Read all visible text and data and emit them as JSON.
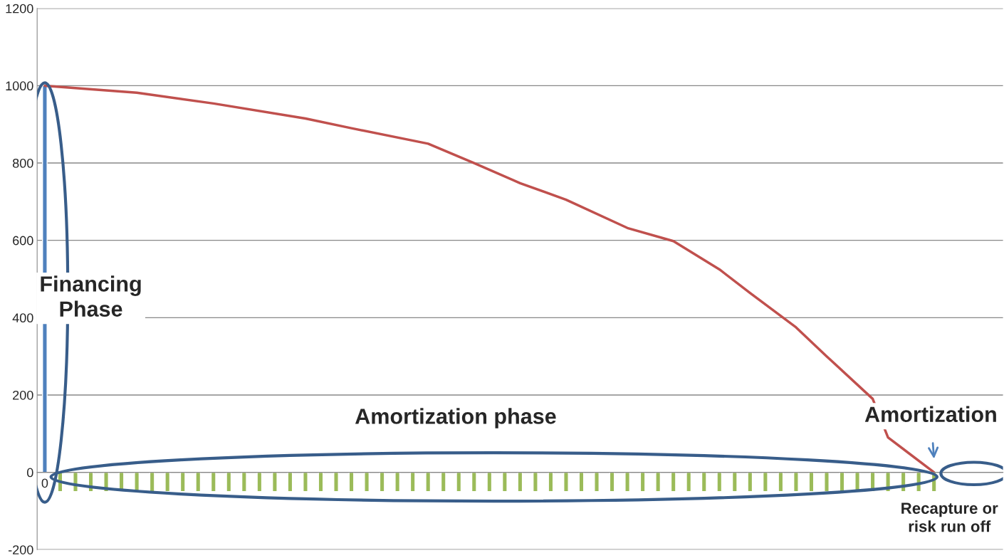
{
  "chart_data": {
    "type": "bar",
    "categories": [
      "0",
      null,
      null,
      null,
      null,
      null,
      null,
      null,
      null,
      null,
      null,
      null,
      null,
      null,
      null,
      null,
      null,
      null,
      null,
      null,
      null,
      null,
      null,
      null,
      null,
      null,
      null,
      null,
      null,
      null,
      null,
      null,
      null,
      null,
      null,
      null,
      null,
      null,
      null,
      null,
      null,
      null,
      null,
      null,
      null,
      null,
      null,
      null,
      null,
      null,
      null,
      null,
      null,
      null,
      null,
      null,
      null,
      null,
      null,
      null,
      null,
      null,
      null
    ],
    "series": [
      {
        "color": "#4f81bd",
        "values": [
          1000,
          null,
          null,
          null,
          null,
          null,
          null,
          null,
          null,
          null,
          null,
          null,
          null,
          null,
          null,
          null,
          null,
          null,
          null,
          null,
          null,
          null,
          null,
          null,
          null,
          null,
          null,
          null,
          null,
          null,
          null,
          null,
          null,
          null,
          null,
          null,
          null,
          null,
          null,
          null,
          null,
          null,
          null,
          null,
          null,
          null,
          null,
          null,
          null,
          null,
          null,
          null,
          null,
          null,
          null,
          null,
          null,
          null,
          null,
          null,
          null,
          null,
          null
        ]
      },
      {
        "color": "#9bbb59",
        "values": [
          null,
          -50,
          -50,
          -50,
          -50,
          -50,
          -50,
          -50,
          -50,
          -50,
          -50,
          -50,
          -50,
          -50,
          -50,
          -50,
          -50,
          -50,
          -50,
          -50,
          -50,
          -50,
          -50,
          -50,
          -50,
          -50,
          -50,
          -50,
          -50,
          -50,
          -50,
          -50,
          -50,
          -50,
          -50,
          -50,
          -50,
          -50,
          -50,
          -50,
          -50,
          -50,
          -50,
          -50,
          -50,
          -50,
          -50,
          -50,
          -50,
          -50,
          -50,
          -50,
          -50,
          -50,
          -50,
          -50,
          -50,
          -50,
          -50,
          null,
          null,
          null,
          null
        ]
      },
      {
        "type": "line",
        "color": "#c0504d",
        "values": [
          1000,
          null,
          null,
          null,
          null,
          null,
          982,
          null,
          null,
          null,
          null,
          954,
          null,
          null,
          null,
          null,
          null,
          915,
          null,
          null,
          890,
          null,
          null,
          null,
          null,
          850,
          null,
          null,
          800,
          null,
          null,
          748,
          null,
          null,
          705,
          null,
          null,
          null,
          632,
          null,
          null,
          598,
          null,
          null,
          525,
          null,
          464,
          null,
          null,
          375,
          null,
          300,
          null,
          null,
          190,
          90,
          null,
          null,
          0,
          null,
          null,
          null,
          null
        ]
      }
    ],
    "ylim": [
      -200,
      1200
    ],
    "yticks": [
      -200,
      0,
      200,
      400,
      600,
      800,
      1000,
      1200
    ],
    "grid": "y",
    "legend": false,
    "annotations": [
      "Financing\nPhase",
      "Amortization phase",
      "Amortization",
      "Recapture or\nrisk run off"
    ]
  }
}
